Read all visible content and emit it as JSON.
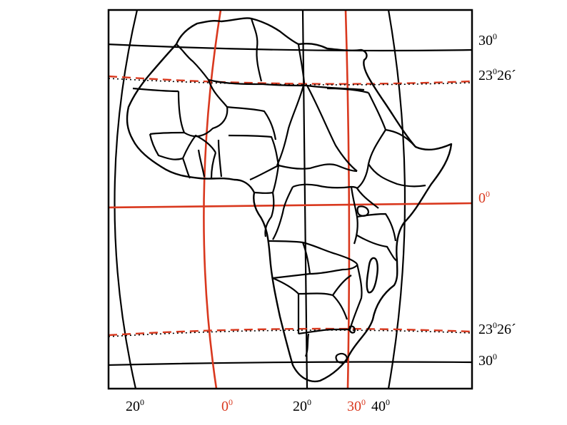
{
  "colors": {
    "graticule": "#000000",
    "highlight": "#d9381e",
    "frame": "#000000",
    "land_outline": "#000000",
    "background": "#ffffff"
  },
  "right_labels": {
    "lat_30_north": {
      "deg": "30",
      "sup": "0",
      "min": ""
    },
    "tropic_cancer": {
      "deg": "23",
      "sup": "0",
      "min": "26´"
    },
    "equator": {
      "deg": "0",
      "sup": "0",
      "min": ""
    },
    "tropic_capricorn": {
      "deg": "23",
      "sup": "0",
      "min": "26´"
    },
    "lat_30_south": {
      "deg": "30",
      "sup": "0",
      "min": ""
    }
  },
  "bottom_labels": {
    "lon_20_west": {
      "deg": "20",
      "sup": "0"
    },
    "prime_meridian": {
      "deg": "0",
      "sup": "0"
    },
    "lon_20_east": {
      "deg": "20",
      "sup": "0"
    },
    "lon_30_east": {
      "deg": "30",
      "sup": "0"
    },
    "lon_40_east": {
      "deg": "40",
      "sup": "0"
    }
  }
}
